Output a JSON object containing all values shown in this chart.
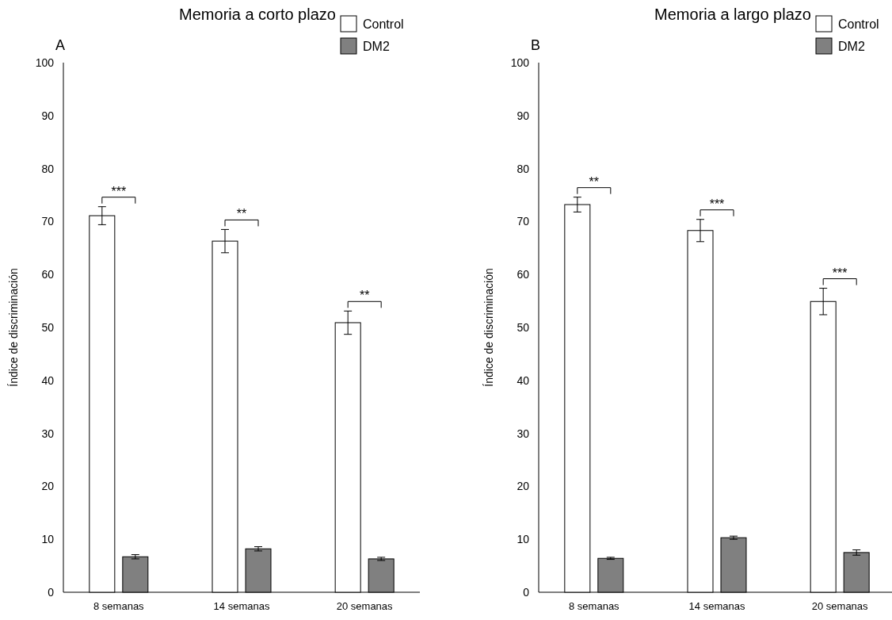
{
  "chart_data": [
    {
      "type": "bar",
      "title": "Memoria a corto plazo",
      "ylabel": "Índice de discriminación",
      "categories": [
        "8 semanas",
        "14 semanas",
        "20 semanas"
      ],
      "ylim": [
        0,
        100
      ],
      "yticks": [
        0,
        10,
        20,
        30,
        40,
        50,
        60,
        70,
        80,
        90,
        100
      ],
      "grid": false,
      "legend": "top right",
      "annotations": [
        "A",
        "***",
        "**",
        "**"
      ],
      "series": [
        {
          "name": "Control",
          "color": "#ffffff",
          "values": [
            71.1,
            66.3,
            50.9
          ],
          "errors": [
            1.7,
            2.2,
            2.2
          ]
        },
        {
          "name": "DM2",
          "color": "#808080",
          "values": [
            6.7,
            8.2,
            6.3
          ],
          "errors": [
            0.4,
            0.4,
            0.3
          ]
        }
      ]
    },
    {
      "type": "bar",
      "title": "Memoria a largo plazo",
      "ylabel": "Índice de discriminación",
      "categories": [
        "8 semanas",
        "14 semanas",
        "20 semanas"
      ],
      "ylim": [
        0,
        100
      ],
      "yticks": [
        0,
        10,
        20,
        30,
        40,
        50,
        60,
        70,
        80,
        90,
        100
      ],
      "grid": false,
      "legend": "top right",
      "annotations": [
        "B",
        "**",
        "***",
        "***"
      ],
      "series": [
        {
          "name": "Control",
          "color": "#ffffff",
          "values": [
            73.2,
            68.3,
            54.9
          ],
          "errors": [
            1.4,
            2.1,
            2.5
          ]
        },
        {
          "name": "DM2",
          "color": "#808080",
          "values": [
            6.4,
            10.3,
            7.5
          ],
          "errors": [
            0.2,
            0.3,
            0.5
          ]
        }
      ]
    }
  ]
}
